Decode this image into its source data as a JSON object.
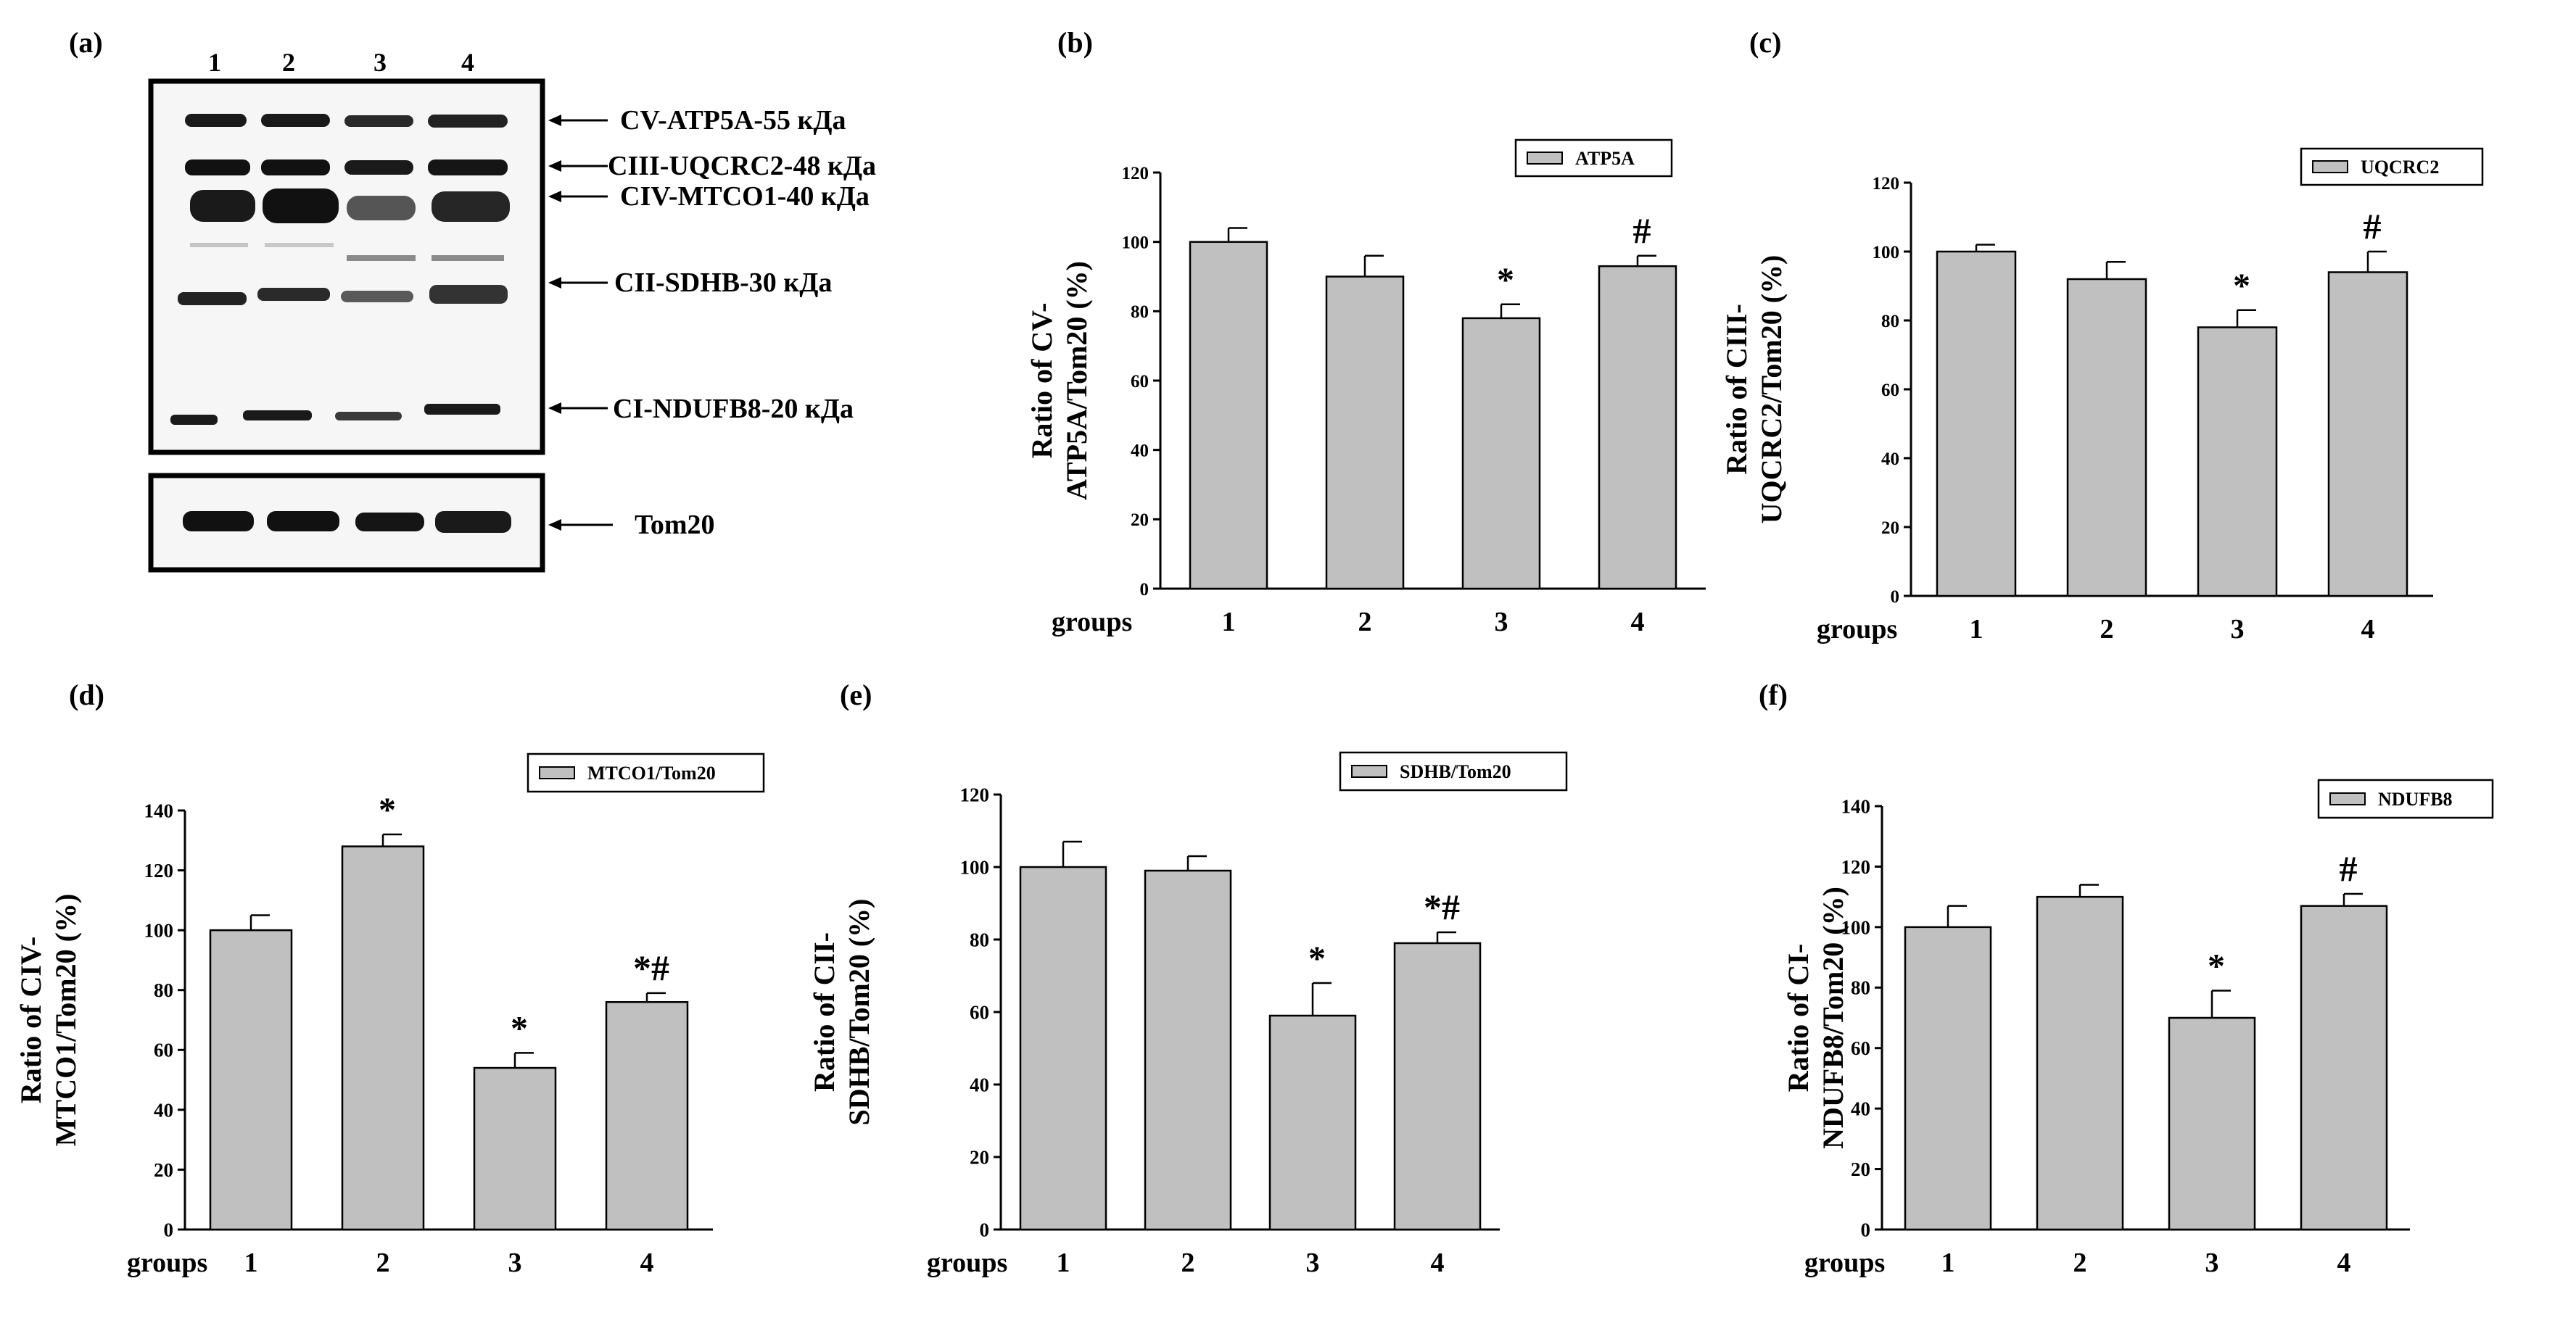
{
  "figure": {
    "panel_a": {
      "label": "(a)",
      "lanes": [
        "1",
        "2",
        "3",
        "4"
      ],
      "band_labels": [
        "CV-ATP5A-55 кДа",
        "CIII-UQCRC2-48 кДа",
        "CIV-MTCO1-40 кДа",
        "CII-SDHB-30 кДа",
        "CI-NDUFB8-20 кДа"
      ],
      "loading_label": "Tom20"
    },
    "colors": {
      "bar": "#c0c0c0",
      "edge": "#000000",
      "background": "#ffffff"
    }
  },
  "chart_data": [
    {
      "panel": "(b)",
      "type": "bar",
      "categories": [
        "1",
        "2",
        "3",
        "4"
      ],
      "values": [
        100,
        90,
        78,
        93
      ],
      "errors": [
        4,
        6,
        4,
        3
      ],
      "annotations": [
        "",
        "",
        "*",
        "#"
      ],
      "ylim": [
        0,
        120
      ],
      "yticks": [
        0,
        20,
        40,
        60,
        80,
        100,
        120
      ],
      "xlabel": "groups",
      "ylabel_lines": [
        "Ratio of CV-",
        "ATP5A/Tom20 (%)"
      ],
      "legend": "ATP5A",
      "legend_position": "top-right"
    },
    {
      "panel": "(c)",
      "type": "bar",
      "categories": [
        "1",
        "2",
        "3",
        "4"
      ],
      "values": [
        100,
        92,
        78,
        94
      ],
      "errors": [
        2,
        5,
        5,
        6
      ],
      "annotations": [
        "",
        "",
        "*",
        "#"
      ],
      "ylim": [
        0,
        120
      ],
      "yticks": [
        0,
        20,
        40,
        60,
        80,
        100,
        120
      ],
      "xlabel": "groups",
      "ylabel_lines": [
        "Ratio of CIII-",
        "UQCRC2/Tom20 (%)"
      ],
      "legend": "UQCRC2",
      "legend_position": "top-right"
    },
    {
      "panel": "(d)",
      "type": "bar",
      "categories": [
        "1",
        "2",
        "3",
        "4"
      ],
      "values": [
        100,
        128,
        54,
        76
      ],
      "errors": [
        5,
        4,
        5,
        3
      ],
      "annotations": [
        "",
        "*",
        "*",
        "*#"
      ],
      "ylim": [
        0,
        140
      ],
      "yticks": [
        0,
        20,
        40,
        60,
        80,
        100,
        120,
        140
      ],
      "xlabel": "groups",
      "ylabel_lines": [
        "Ratio of CIV-",
        "MTCO1/Tom20 (%)"
      ],
      "legend": "MTCO1/Tom20",
      "legend_position": "top-right"
    },
    {
      "panel": "(e)",
      "type": "bar",
      "categories": [
        "1",
        "2",
        "3",
        "4"
      ],
      "values": [
        100,
        99,
        59,
        79
      ],
      "errors": [
        7,
        4,
        9,
        3
      ],
      "annotations": [
        "",
        "",
        "*",
        "*#"
      ],
      "ylim": [
        0,
        120
      ],
      "yticks": [
        0,
        20,
        40,
        60,
        80,
        100,
        120
      ],
      "xlabel": "groups",
      "ylabel_lines": [
        "Ratio of CII-",
        "SDHB/Tom20 (%)"
      ],
      "legend": "SDHB/Tom20",
      "legend_position": "top-right"
    },
    {
      "panel": "(f)",
      "type": "bar",
      "categories": [
        "1",
        "2",
        "3",
        "4"
      ],
      "values": [
        100,
        110,
        70,
        107
      ],
      "errors": [
        7,
        4,
        9,
        4
      ],
      "annotations": [
        "",
        "",
        "*",
        "#"
      ],
      "ylim": [
        0,
        140
      ],
      "yticks": [
        0,
        20,
        40,
        60,
        80,
        100,
        120,
        140
      ],
      "xlabel": "groups",
      "ylabel_lines": [
        "Ratio of CI-",
        "NDUFB8/Tom20 (%)"
      ],
      "legend": "NDUFB8",
      "legend_position": "top-right"
    }
  ]
}
